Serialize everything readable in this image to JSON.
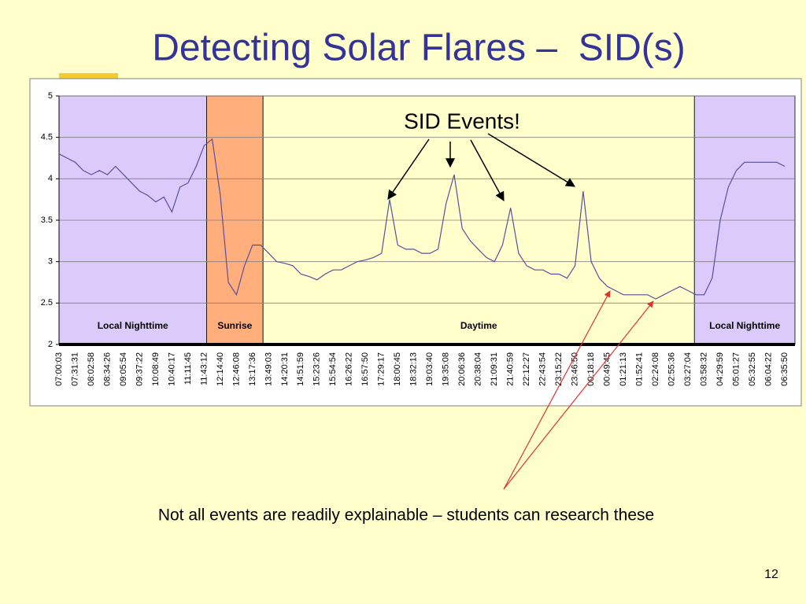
{
  "title": "Detecting Solar Flares –  SID(s)",
  "footnote": "Not all events are readily explainable – students can research these",
  "page_number": "12",
  "chart_data": {
    "type": "line",
    "annotation": "SID Events!",
    "categories": [
      "07:00:03",
      null,
      "07:31:31",
      null,
      "08:02:58",
      null,
      "08:34:26",
      null,
      "09:05:54",
      null,
      "09:37:22",
      null,
      "10:08:49",
      null,
      "10:40:17",
      null,
      "11:11:45",
      null,
      "11:43:12",
      null,
      "12:14:40",
      null,
      "12:46:08",
      null,
      "13:17:36",
      null,
      "13:49:03",
      null,
      "14:20:31",
      null,
      "14:51:59",
      null,
      "15:23:26",
      null,
      "15:54:54",
      null,
      "16:26:22",
      null,
      "16:57:50",
      null,
      "17:29:17",
      null,
      "18:00:45",
      null,
      "18:32:13",
      null,
      "19:03:40",
      null,
      "19:35:08",
      null,
      "20:06:36",
      null,
      "20:38:04",
      null,
      "21:09:31",
      null,
      "21:40:59",
      null,
      "22:12:27",
      null,
      "22:43:54",
      null,
      "23:15:22",
      null,
      "23:46:50",
      null,
      "00:18:18",
      null,
      "00:49:45",
      null,
      "01:21:13",
      null,
      "01:52:41",
      null,
      "02:24:08",
      null,
      "02:55:36",
      null,
      "03:27:04",
      null,
      "03:58:32",
      null,
      "04:29:59",
      null,
      "05:01:27",
      null,
      "05:32:55",
      null,
      "06:04:22",
      null,
      "06:35:50"
    ],
    "series": [
      {
        "color": "#5a4fa0",
        "values": [
          4.3,
          4.25,
          4.2,
          4.1,
          4.05,
          4.1,
          4.05,
          4.15,
          4.05,
          3.95,
          3.85,
          3.8,
          3.72,
          3.78,
          3.6,
          3.9,
          3.95,
          4.15,
          4.4,
          4.48,
          3.8,
          2.75,
          2.6,
          2.95,
          3.2,
          3.2,
          3.1,
          3.0,
          2.98,
          2.95,
          2.85,
          2.82,
          2.78,
          2.85,
          2.9,
          2.9,
          2.95,
          3.0,
          3.02,
          3.05,
          3.1,
          3.75,
          3.2,
          3.15,
          3.15,
          3.1,
          3.1,
          3.15,
          3.7,
          4.05,
          3.4,
          3.25,
          3.15,
          3.05,
          3.0,
          3.2,
          3.65,
          3.1,
          2.95,
          2.9,
          2.9,
          2.85,
          2.85,
          2.8,
          2.95,
          3.85,
          3.0,
          2.8,
          2.7,
          2.65,
          2.6,
          2.6,
          2.6,
          2.6,
          2.55,
          2.6,
          2.65,
          2.7,
          2.65,
          2.6,
          2.6,
          2.8,
          3.5,
          3.9,
          4.1,
          4.2,
          4.2,
          4.2,
          4.2,
          4.2,
          4.15
        ]
      }
    ],
    "ylim": [
      2,
      5
    ],
    "yticks": [
      2,
      2.5,
      3,
      3.5,
      4,
      4.5,
      5
    ],
    "grid": true,
    "regions": [
      {
        "label": "Local Nighttime",
        "from": 0,
        "to": 18.3,
        "color": "#dccafa"
      },
      {
        "label": "Sunrise",
        "from": 18.3,
        "to": 25.3,
        "color": "#ffae7c"
      },
      {
        "label": "Daytime",
        "from": 25.3,
        "to": 78.8,
        "color": "#ffffcc"
      },
      {
        "label": "Local Nighttime",
        "from": 78.8,
        "to": 91.3,
        "color": "#dccafa"
      }
    ]
  }
}
